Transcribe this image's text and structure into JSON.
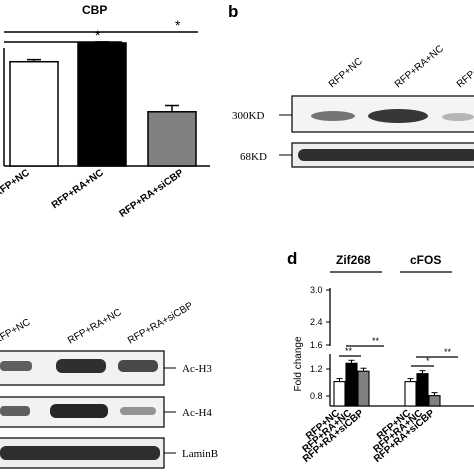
{
  "panels": {
    "a": {
      "title": "CBP",
      "sig_top": "*",
      "sig_bottom": "*",
      "xlabels": [
        "RFP+NC",
        "RFP+RA+NC",
        "RFP+RA+siCBP"
      ],
      "bar_fill_colors": [
        "#ffffff",
        "#000000",
        "#808080"
      ]
    },
    "b": {
      "letter": "b",
      "lane_labels": [
        "RFP+NC",
        "RFP+RA+NC",
        "RFP+RA+siCBP"
      ],
      "band_labels": [
        "300KD",
        "68KD"
      ]
    },
    "c": {
      "lane_labels": [
        "RFP+NC",
        "RFP+RA+NC",
        "RFP+RA+siCBP"
      ],
      "band_labels": [
        "Ac-H3",
        "Ac-H4",
        "LaminB"
      ]
    },
    "d": {
      "letter": "d",
      "group_titles": [
        "Zif268",
        "cFOS"
      ],
      "ylabel": "Fold change",
      "yticks": [
        "3.0",
        "2.4",
        "1.6",
        "1.2",
        "0.8"
      ],
      "sig_marks": [
        "**",
        "**",
        "*",
        "**"
      ],
      "xlabels_group1": [
        "RFP+NC",
        "RFP+RA+NC",
        "RFP+RA+siCBP"
      ],
      "xlabels_group2": [
        "RFP+NC",
        "RFP+RA+NC",
        "RFP+RA+siCBP"
      ]
    }
  },
  "chart_data": [
    {
      "type": "bar",
      "title": "CBP",
      "categories": [
        "RFP+NC",
        "RFP+RA+NC",
        "RFP+RA+siCBP"
      ],
      "values": [
        1.0,
        1.18,
        0.52
      ],
      "errors": [
        0.02,
        0.01,
        0.06
      ],
      "ylim": [
        0,
        1.4
      ]
    },
    {
      "type": "bar",
      "groups": [
        "Zif268",
        "cFOS"
      ],
      "categories": [
        "RFP+NC",
        "RFP+RA+NC",
        "RFP+RA+siCBP"
      ],
      "ylabel": "Fold change",
      "axis_broken": true,
      "series": [
        {
          "values": [
            1.0,
            1.3,
            1.17
          ]
        },
        {
          "values": [
            1.0,
            1.13,
            0.77
          ]
        }
      ]
    }
  ]
}
